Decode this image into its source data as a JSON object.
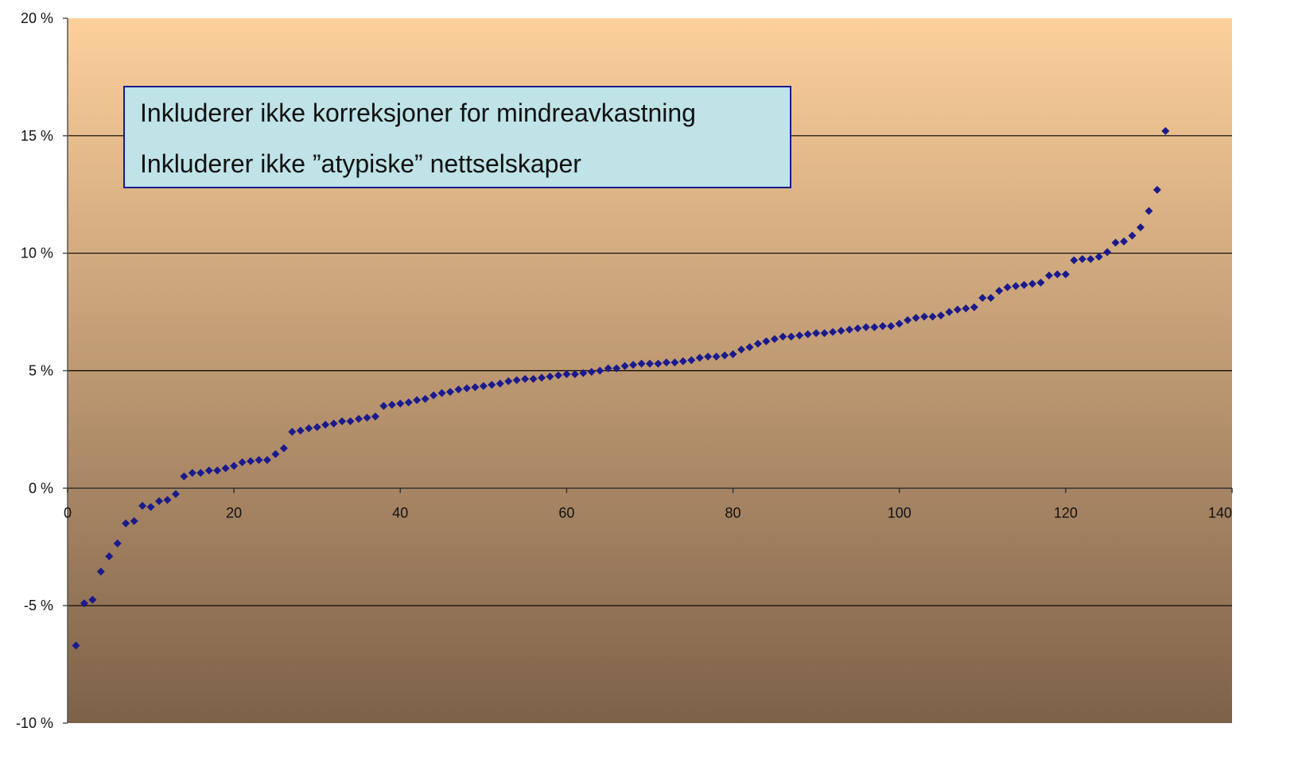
{
  "chart_data": {
    "type": "scatter",
    "title": "",
    "xlabel": "",
    "ylabel": "",
    "xlim": [
      0,
      140
    ],
    "ylim": [
      -10,
      20
    ],
    "x_ticks": [
      0,
      20,
      40,
      60,
      80,
      100,
      120,
      140
    ],
    "x_tick_labels": [
      "0",
      "20",
      "40",
      "60",
      "80",
      "100",
      "120",
      "140"
    ],
    "y_ticks": [
      -10,
      -5,
      0,
      5,
      10,
      15,
      20
    ],
    "y_tick_labels": [
      "-10 %",
      "-5 %",
      "0 %",
      "5 %",
      "10 %",
      "15 %",
      "20 %"
    ],
    "grid": "horizontal",
    "colors": {
      "background_top": "#fdd09b",
      "background_bottom": "#7d6149",
      "marker": "#1a1a8c",
      "annotation_fill": "#bfe3e6",
      "annotation_border": "#1a1a8c"
    },
    "annotation_lines": [
      "Inkluderer ikke korreksjoner for mindreavkastning",
      "Inkluderer ikke ”atypiske” nettselskaper"
    ],
    "series": [
      {
        "x": [
          1,
          2,
          3,
          4,
          5,
          6,
          7,
          8,
          9,
          10,
          11,
          12,
          13,
          14,
          15,
          16,
          17,
          18,
          19,
          20,
          21,
          22,
          23,
          24,
          25,
          26,
          27,
          28,
          29,
          30,
          31,
          32,
          33,
          34,
          35,
          36,
          37,
          38,
          39,
          40,
          41,
          42,
          43,
          44,
          45,
          46,
          47,
          48,
          49,
          50,
          51,
          52,
          53,
          54,
          55,
          56,
          57,
          58,
          59,
          60,
          61,
          62,
          63,
          64,
          65,
          66,
          67,
          68,
          69,
          70,
          71,
          72,
          73,
          74,
          75,
          76,
          77,
          78,
          79,
          80,
          81,
          82,
          83,
          84,
          85,
          86,
          87,
          88,
          89,
          90,
          91,
          92,
          93,
          94,
          95,
          96,
          97,
          98,
          99,
          100,
          101,
          102,
          103,
          104,
          105,
          106,
          107,
          108,
          109,
          110,
          111,
          112,
          113,
          114,
          115,
          116,
          117,
          118,
          119,
          120,
          121,
          122,
          123,
          124,
          125,
          126,
          127,
          128,
          129,
          130,
          131,
          132
        ],
        "y": [
          -6.7,
          -4.9,
          -4.75,
          -3.55,
          -2.9,
          -2.35,
          -1.5,
          -1.4,
          -0.75,
          -0.8,
          -0.55,
          -0.5,
          -0.25,
          0.5,
          0.65,
          0.65,
          0.75,
          0.75,
          0.85,
          0.95,
          1.1,
          1.15,
          1.2,
          1.2,
          1.45,
          1.7,
          2.4,
          2.45,
          2.55,
          2.6,
          2.7,
          2.75,
          2.85,
          2.85,
          2.95,
          3.0,
          3.05,
          3.5,
          3.55,
          3.6,
          3.65,
          3.75,
          3.8,
          3.95,
          4.05,
          4.1,
          4.2,
          4.25,
          4.3,
          4.35,
          4.4,
          4.45,
          4.55,
          4.6,
          4.65,
          4.65,
          4.7,
          4.75,
          4.8,
          4.85,
          4.85,
          4.9,
          4.95,
          5.0,
          5.1,
          5.1,
          5.2,
          5.25,
          5.3,
          5.3,
          5.3,
          5.35,
          5.35,
          5.4,
          5.45,
          5.55,
          5.6,
          5.6,
          5.65,
          5.7,
          5.9,
          6.0,
          6.15,
          6.25,
          6.35,
          6.45,
          6.45,
          6.5,
          6.55,
          6.6,
          6.6,
          6.65,
          6.7,
          6.75,
          6.8,
          6.85,
          6.85,
          6.9,
          6.9,
          7.0,
          7.15,
          7.25,
          7.3,
          7.3,
          7.35,
          7.5,
          7.6,
          7.65,
          7.7,
          8.1,
          8.1,
          8.4,
          8.55,
          8.6,
          8.65,
          8.7,
          8.75,
          9.05,
          9.1,
          9.1,
          9.7,
          9.75,
          9.75,
          9.85,
          10.05,
          10.45,
          10.5,
          10.75,
          11.1,
          11.8,
          12.7,
          15.2
        ]
      }
    ]
  }
}
